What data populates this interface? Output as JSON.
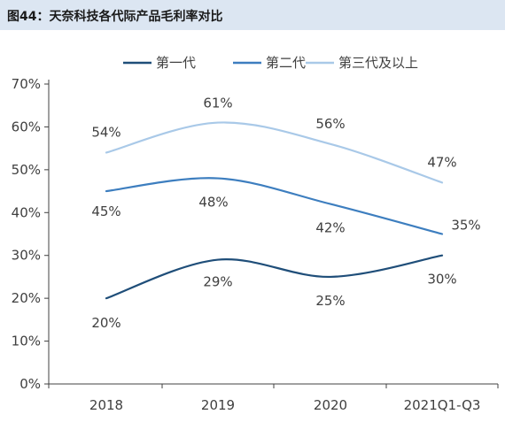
{
  "figure_title": "图44：天奈科技各代际产品毛利率对比",
  "chart_data": {
    "type": "line",
    "title": "",
    "xlabel": "",
    "ylabel": "",
    "categories": [
      "2018",
      "2019",
      "2020",
      "2021Q1-Q3"
    ],
    "ylim": [
      0,
      70
    ],
    "yticks": [
      "0%",
      "10%",
      "20%",
      "30%",
      "40%",
      "50%",
      "60%",
      "70%"
    ],
    "grid": false,
    "smooth": true,
    "legend_position": "top-center",
    "series": [
      {
        "name": "第一代",
        "values": [
          20,
          29,
          25,
          30
        ],
        "labels": [
          "20%",
          "29%",
          "25%",
          "30%"
        ],
        "color": "#1f4e79"
      },
      {
        "name": "第二代",
        "values": [
          45,
          48,
          42,
          35
        ],
        "labels": [
          "45%",
          "48%",
          "42%",
          "35%"
        ],
        "color": "#3d7ebf"
      },
      {
        "name": "第三代及以上",
        "values": [
          54,
          61,
          56,
          47
        ],
        "labels": [
          "54%",
          "61%",
          "56%",
          "47%"
        ],
        "color": "#a9c9e8"
      }
    ]
  }
}
